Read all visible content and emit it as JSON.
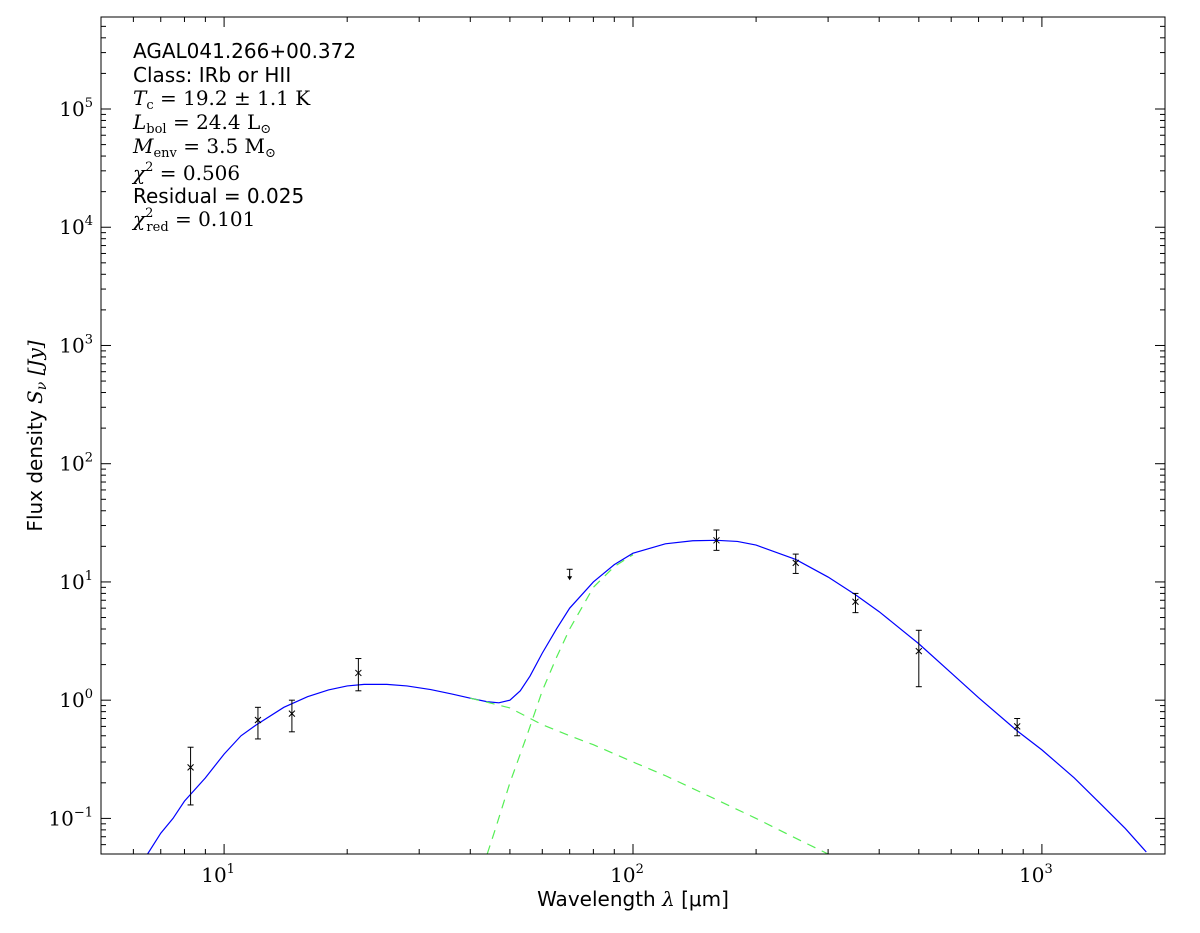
{
  "chart_data": {
    "type": "scatter",
    "xlabel_text": "Wavelength ",
    "xlabel_symbol": "λ",
    "xlabel_unit": " [μm]",
    "ylabel_text": "Flux density ",
    "ylabel_symbol": "S",
    "ylabel_sub": "ν",
    "ylabel_unit": " [Jy]",
    "xscale": "log",
    "yscale": "log",
    "xlim": [
      5,
      2000
    ],
    "ylim": [
      0.05,
      600000
    ],
    "x_ticks": [
      {
        "value": 10,
        "base": "10",
        "exp": "1"
      },
      {
        "value": 100,
        "base": "10",
        "exp": "2"
      },
      {
        "value": 1000,
        "base": "10",
        "exp": "3"
      }
    ],
    "y_ticks": [
      {
        "value": 0.1,
        "base": "10",
        "exp": "−1"
      },
      {
        "value": 1,
        "base": "10",
        "exp": "0"
      },
      {
        "value": 10,
        "base": "10",
        "exp": "1"
      },
      {
        "value": 100,
        "base": "10",
        "exp": "2"
      },
      {
        "value": 1000,
        "base": "10",
        "exp": "3"
      },
      {
        "value": 10000,
        "base": "10",
        "exp": "4"
      },
      {
        "value": 100000,
        "base": "10",
        "exp": "5"
      }
    ],
    "annotations": {
      "source": "AGAL041.266+00.372",
      "class_label": "Class: IRb or HII",
      "tc_sym": "T",
      "tc_sub": "c",
      "tc_val": " = 19.2 ± 1.1 K",
      "lbol_sym": "L",
      "lbol_sub": "bol",
      "lbol_val": " = 24.4 L",
      "lbol_unit_sub": "⊙",
      "menv_sym": "M",
      "menv_sub": "env",
      "menv_val": " = 3.5 M",
      "menv_unit_sub": "⊙",
      "chi2_sym": "χ",
      "chi2_sup": "2",
      "chi2_val": " = 0.506",
      "residual": "Residual = 0.025",
      "chired_sym": "χ",
      "chired_sup": "2",
      "chired_sub": "red",
      "chired_val": " = 0.101"
    },
    "points": [
      {
        "x": 8.28,
        "y": 0.27,
        "lo": 0.13,
        "hi": 0.4
      },
      {
        "x": 12.1,
        "y": 0.68,
        "lo": 0.47,
        "hi": 0.87
      },
      {
        "x": 14.65,
        "y": 0.77,
        "lo": 0.54,
        "hi": 1.0
      },
      {
        "x": 21.3,
        "y": 1.7,
        "lo": 1.2,
        "hi": 2.25
      },
      {
        "x": 160,
        "y": 22.5,
        "lo": 18.5,
        "hi": 27.5
      },
      {
        "x": 250,
        "y": 14.5,
        "lo": 11.8,
        "hi": 17.2
      },
      {
        "x": 350,
        "y": 6.8,
        "lo": 5.5,
        "hi": 8.0
      },
      {
        "x": 500,
        "y": 2.6,
        "lo": 1.3,
        "hi": 3.9
      },
      {
        "x": 870,
        "y": 0.6,
        "lo": 0.5,
        "hi": 0.7
      }
    ],
    "upper_limits": [
      {
        "x": 70,
        "y": 12.8
      }
    ],
    "series": [
      {
        "role": "total fit",
        "color": "#0000ff",
        "style": "solid",
        "x": [
          6.5,
          7,
          7.5,
          8,
          9,
          10,
          11,
          12,
          14,
          16,
          18,
          20,
          22,
          25,
          28,
          32,
          36,
          40,
          44,
          47,
          50,
          53,
          56,
          60,
          65,
          70,
          80,
          90,
          100,
          120,
          140,
          160,
          180,
          200,
          250,
          300,
          350,
          400,
          500,
          600,
          700,
          870,
          1000,
          1200,
          1400,
          1600,
          1800
        ],
        "y": [
          0.05,
          0.075,
          0.1,
          0.14,
          0.22,
          0.35,
          0.5,
          0.62,
          0.87,
          1.07,
          1.22,
          1.32,
          1.36,
          1.36,
          1.32,
          1.23,
          1.13,
          1.04,
          0.97,
          0.95,
          1.0,
          1.2,
          1.6,
          2.5,
          4.0,
          6.0,
          10,
          14,
          17.5,
          21,
          22.3,
          22.5,
          22,
          20.5,
          15.5,
          11,
          7.8,
          5.6,
          3.0,
          1.7,
          1.05,
          0.55,
          0.38,
          0.22,
          0.13,
          0.082,
          0.052
        ]
      },
      {
        "role": "cold component",
        "color": "#55ee55",
        "style": "dashed",
        "x": [
          44,
          46,
          50,
          55,
          60,
          65,
          70,
          80,
          90,
          100
        ],
        "y": [
          0.05,
          0.08,
          0.2,
          0.5,
          1.2,
          2.3,
          4.0,
          9.0,
          13.5,
          17.0
        ]
      },
      {
        "role": "warm component",
        "color": "#55ee55",
        "style": "dashed",
        "x": [
          40,
          44,
          50,
          60,
          70,
          80,
          100,
          120,
          150,
          200,
          250,
          300
        ],
        "y": [
          1.04,
          0.96,
          0.86,
          0.62,
          0.5,
          0.42,
          0.3,
          0.23,
          0.16,
          0.1,
          0.068,
          0.05
        ]
      }
    ]
  }
}
